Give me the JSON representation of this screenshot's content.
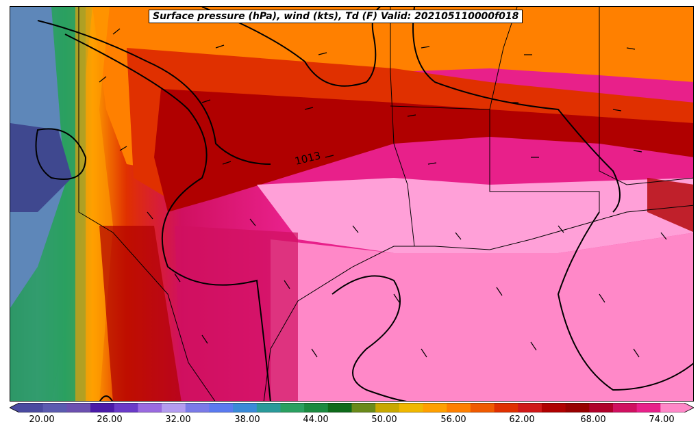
{
  "title": "Surface pressure (hPa), wind (kts), Td (F) Valid: 202105110000f018",
  "isobar_label": "1013",
  "colorbar": {
    "ticks": [
      "20.00",
      "26.00",
      "32.00",
      "38.00",
      "44.00",
      "50.00",
      "56.00",
      "62.00",
      "68.00",
      "74.00"
    ],
    "colors": [
      "#4a4aa0",
      "#5b5bb0",
      "#6c50b0",
      "#4a1aa8",
      "#6a3ac8",
      "#9a6ae0",
      "#b49cf0",
      "#7a7ae8",
      "#5a7af0",
      "#3a8ad8",
      "#2a9a9a",
      "#2aa060",
      "#1a8a40",
      "#0e6a1a",
      "#6a8a1a",
      "#c8a800",
      "#f0b800",
      "#ffa000",
      "#ff8000",
      "#f05a00",
      "#e03000",
      "#d01818",
      "#b00000",
      "#980000",
      "#b0002a",
      "#d01060",
      "#e8208a",
      "#ff88c8"
    ]
  },
  "colors": {
    "far_west": "#4a1aa8",
    "west_green": "#2aa060",
    "orange": "#ff8000",
    "red": "#e03000",
    "dark_red": "#b00000",
    "magenta": "#e8208a",
    "pink": "#ff88c8",
    "light_pink": "#ffa0d8"
  }
}
